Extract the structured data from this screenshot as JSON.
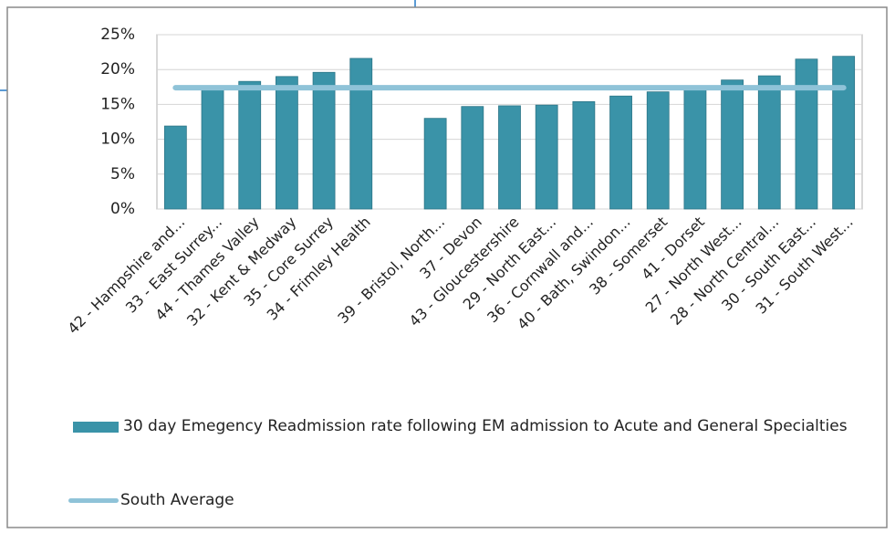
{
  "chart_data": {
    "type": "bar",
    "categories": [
      "42 - Hampshire and...",
      "33 - East Surrey...",
      "44 - Thames Valley",
      "32 - Kent & Medway",
      "35 - Core Surrey",
      "34 - Frimley Health",
      null,
      "39 - Bristol, North...",
      "37 - Devon",
      "43 - Gloucestershire",
      "29 - North East...",
      "36 - Cornwall and...",
      "40 - Bath, Swindon...",
      "38 - Somerset",
      "41 - Dorset",
      "27 - North West...",
      "28 - North Central...",
      "30 - South East...",
      "31 - South West..."
    ],
    "series": [
      {
        "name": "30 day Emegency Readmission rate following EM admission to Acute and General Specialties",
        "type": "bar",
        "color": "#3a93a8",
        "values": [
          11.9,
          17.5,
          18.3,
          19.0,
          19.6,
          21.6,
          null,
          13.0,
          14.7,
          14.8,
          14.9,
          15.4,
          16.2,
          16.8,
          17.5,
          18.5,
          19.1,
          21.5,
          21.9
        ]
      },
      {
        "name": "South Average",
        "type": "line",
        "color": "#8fc3d8",
        "values": [
          17.4,
          17.4,
          17.4,
          17.4,
          17.4,
          17.4,
          17.4,
          17.4,
          17.4,
          17.4,
          17.4,
          17.4,
          17.4,
          17.4,
          17.4,
          17.4,
          17.4,
          17.4,
          17.4
        ]
      }
    ],
    "ylim": [
      0,
      25
    ],
    "yticks": [
      {
        "value": 0,
        "label": "0%"
      },
      {
        "value": 5,
        "label": "5%"
      },
      {
        "value": 10,
        "label": "10%"
      },
      {
        "value": 15,
        "label": "15%"
      },
      {
        "value": 20,
        "label": "20%"
      },
      {
        "value": 25,
        "label": "25%"
      }
    ],
    "grid": true,
    "legend": "bottom"
  }
}
